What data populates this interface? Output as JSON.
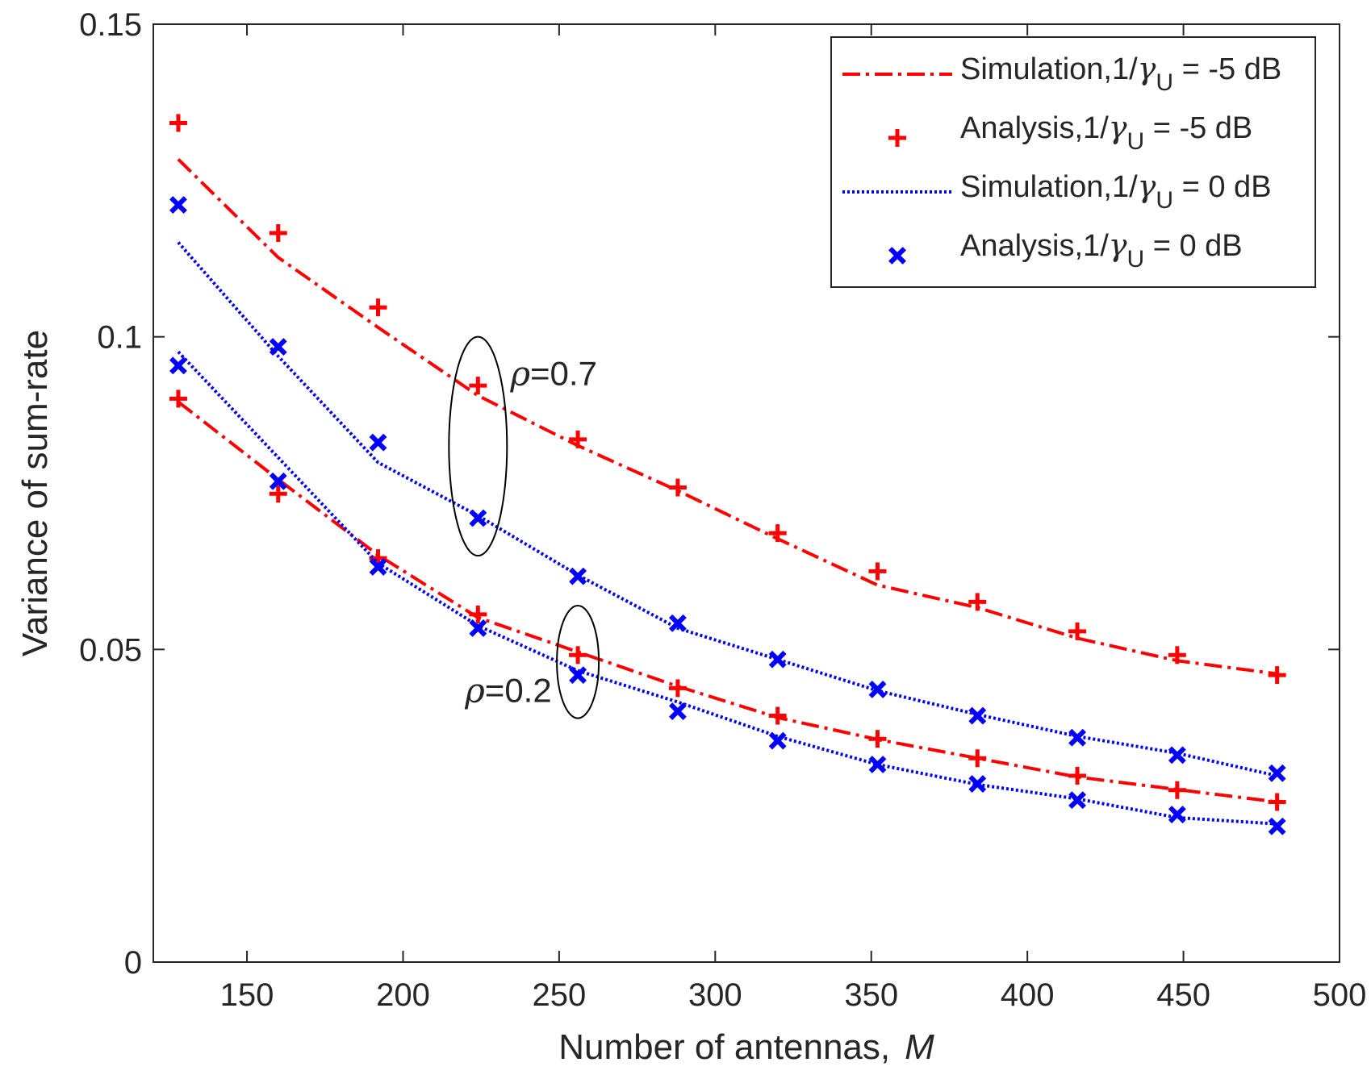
{
  "chart_data": {
    "type": "line",
    "title": "",
    "xlabel": "Number of antennas,",
    "xlabel_var": "M",
    "ylabel": "Variance of sum-rate",
    "xlim": [
      120,
      500
    ],
    "ylim": [
      0,
      0.15
    ],
    "xticks": [
      150,
      200,
      250,
      300,
      350,
      400,
      450,
      500
    ],
    "xtick_labels": [
      "150",
      "200",
      "250",
      "300",
      "350",
      "400",
      "450",
      "500"
    ],
    "yticks": [
      0,
      0.05,
      0.1,
      0.15
    ],
    "ytick_labels": [
      "0",
      "0.05",
      "0.1",
      "0.15"
    ],
    "grid": false,
    "legend_position": "top-right",
    "x": [
      128,
      160,
      192,
      224,
      256,
      288,
      320,
      352,
      384,
      416,
      448,
      480
    ],
    "colors": {
      "red": "#ff0000",
      "blue": "#0000ff",
      "axis": "#262626"
    },
    "series": [
      {
        "id": "sim-m5-r07",
        "name": "Simulation,1/γU = -5 dB",
        "group": "ρ=0.7",
        "style": "dashdot",
        "color": "#ff0000",
        "values": [
          0.1284,
          0.1127,
          0.1015,
          0.0906,
          0.0826,
          0.0754,
          0.0677,
          0.0603,
          0.0567,
          0.0518,
          0.0482,
          0.0461
        ]
      },
      {
        "id": "ana-m5-r07",
        "name": "Analysis,1/γU = -5 dB",
        "group": "ρ=0.7",
        "style": "marker-plus",
        "color": "#ff0000",
        "values": [
          0.1342,
          0.1166,
          0.1047,
          0.0922,
          0.0836,
          0.0759,
          0.0686,
          0.0625,
          0.0576,
          0.0529,
          0.0491,
          0.0459
        ]
      },
      {
        "id": "sim-0-r07",
        "name": "Simulation,1/γU = 0 dB",
        "group": "ρ=0.7",
        "style": "dotted",
        "color": "#0000ff",
        "values": [
          0.1151,
          0.0969,
          0.0799,
          0.0714,
          0.0619,
          0.0534,
          0.0484,
          0.0434,
          0.0396,
          0.0361,
          0.0334,
          0.0298
        ]
      },
      {
        "id": "ana-0-r07",
        "name": "Analysis,1/γU = 0 dB",
        "group": "ρ=0.7",
        "style": "marker-x",
        "color": "#0000ff",
        "values": [
          0.1211,
          0.0984,
          0.0831,
          0.071,
          0.0617,
          0.0542,
          0.0484,
          0.0436,
          0.0394,
          0.0359,
          0.0331,
          0.0302
        ]
      },
      {
        "id": "sim-m5-r02",
        "name": "Simulation,1/γU = -5 dB",
        "group": "ρ=0.2",
        "style": "dashdot",
        "color": "#ff0000",
        "values": [
          0.0896,
          0.0772,
          0.0651,
          0.0551,
          0.0496,
          0.0441,
          0.0391,
          0.0356,
          0.0326,
          0.0296,
          0.0276,
          0.0256
        ]
      },
      {
        "id": "ana-m5-r02",
        "name": "Analysis,1/γU = -5 dB",
        "group": "ρ=0.2",
        "style": "marker-plus",
        "color": "#ff0000",
        "values": [
          0.0901,
          0.0749,
          0.0646,
          0.0556,
          0.0491,
          0.0438,
          0.0394,
          0.0357,
          0.0326,
          0.0298,
          0.0275,
          0.0256
        ]
      },
      {
        "id": "sim-0-r02",
        "name": "Simulation,1/γU = 0 dB",
        "group": "ρ=0.2",
        "style": "dotted",
        "color": "#0000ff",
        "values": [
          0.0976,
          0.0807,
          0.0638,
          0.0538,
          0.0466,
          0.0416,
          0.0361,
          0.0316,
          0.0284,
          0.0261,
          0.0231,
          0.0221
        ]
      },
      {
        "id": "ana-0-r02",
        "name": "Analysis,1/γU = 0 dB",
        "group": "ρ=0.2",
        "style": "marker-x",
        "color": "#0000ff",
        "values": [
          0.0954,
          0.0769,
          0.0632,
          0.0534,
          0.0459,
          0.0401,
          0.0354,
          0.0316,
          0.0285,
          0.0259,
          0.0236,
          0.0217
        ]
      }
    ],
    "legend": [
      {
        "label_prefix": "Simulation,1/",
        "label_symbol": "γ",
        "label_sub": "U",
        "label_suffix": " = -5 dB",
        "style": "dashdot",
        "color": "#ff0000"
      },
      {
        "label_prefix": "Analysis,1/",
        "label_symbol": "γ",
        "label_sub": "U",
        "label_suffix": " = -5 dB",
        "style": "marker-plus",
        "color": "#ff0000"
      },
      {
        "label_prefix": "Simulation,1/",
        "label_symbol": "γ",
        "label_sub": "U",
        "label_suffix": " = 0 dB",
        "style": "dotted",
        "color": "#0000ff"
      },
      {
        "label_prefix": "Analysis,1/",
        "label_symbol": "γ",
        "label_sub": "U",
        "label_suffix": " = 0 dB",
        "style": "marker-x",
        "color": "#0000ff"
      }
    ],
    "annotations": [
      {
        "id": "rho-07",
        "symbol": "ρ",
        "text": "=0.7",
        "at_x": 224,
        "y_range": [
          0.065,
          0.1
        ]
      },
      {
        "id": "rho-02",
        "symbol": "ρ",
        "text": "=0.2",
        "at_x": 256,
        "y_range": [
          0.039,
          0.057
        ]
      }
    ]
  }
}
